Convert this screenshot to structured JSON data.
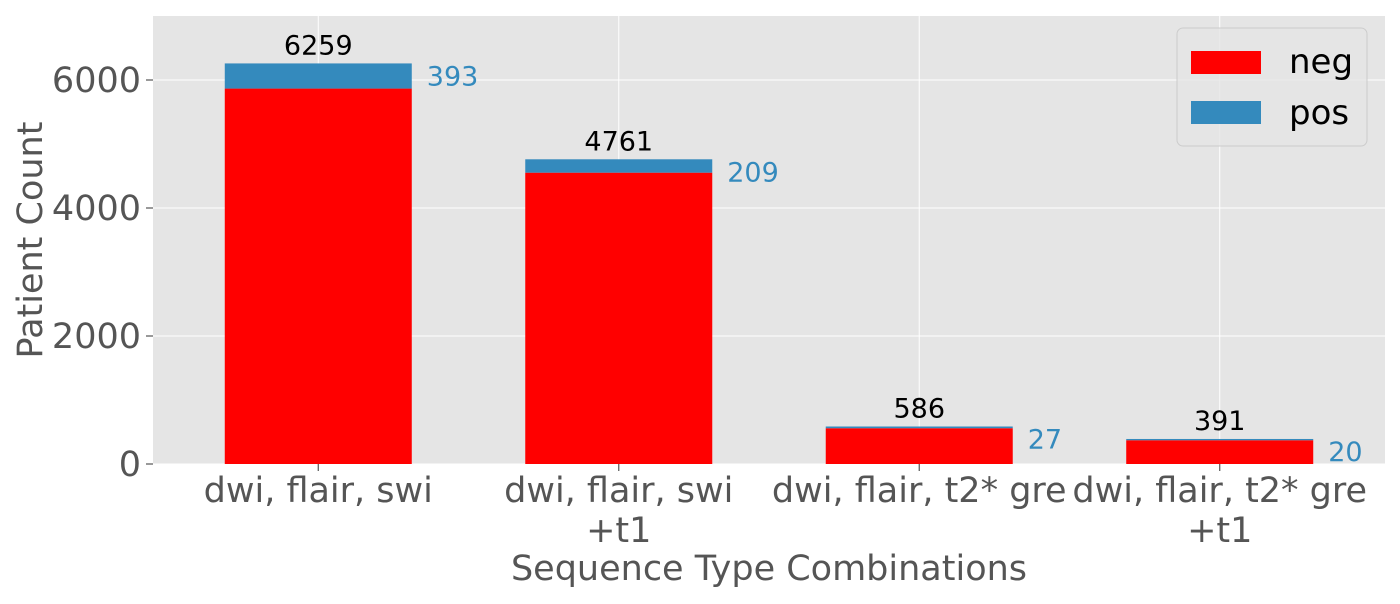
{
  "chart_data": {
    "type": "bar",
    "stacked": true,
    "categories": [
      "dwi, flair, swi",
      "dwi, flair, swi +t1",
      "dwi, flair, t2* gre",
      "dwi, flair, t2* gre +t1"
    ],
    "category_lines": [
      [
        "dwi, flair, swi"
      ],
      [
        "dwi, flair, swi",
        "+t1"
      ],
      [
        "dwi, flair, t2* gre"
      ],
      [
        "dwi, flair, t2* gre",
        "+t1"
      ]
    ],
    "series": [
      {
        "name": "neg",
        "values": [
          5866,
          4552,
          559,
          371
        ],
        "color": "#ff0000"
      },
      {
        "name": "pos",
        "values": [
          393,
          209,
          27,
          20
        ],
        "color": "#348abd"
      }
    ],
    "total_labels": [
      "6259",
      "4761",
      "586",
      "391"
    ],
    "pos_labels": [
      "393",
      "209",
      "27",
      "20"
    ],
    "xlabel": "Sequence Type Combinations",
    "ylabel": "Patient Count",
    "ylim": [
      0,
      7000
    ],
    "yticks": [
      0,
      2000,
      4000,
      6000
    ],
    "ytick_labels": [
      "0",
      "2000",
      "4000",
      "6000"
    ],
    "grid": true,
    "legend_position": "top-right",
    "style": {
      "plot_background": "#e5e5e5",
      "grid_color": "#ffffff",
      "axis_text_color": "#555555",
      "total_label_color": "#000000",
      "pos_label_color": "#348abd"
    }
  }
}
